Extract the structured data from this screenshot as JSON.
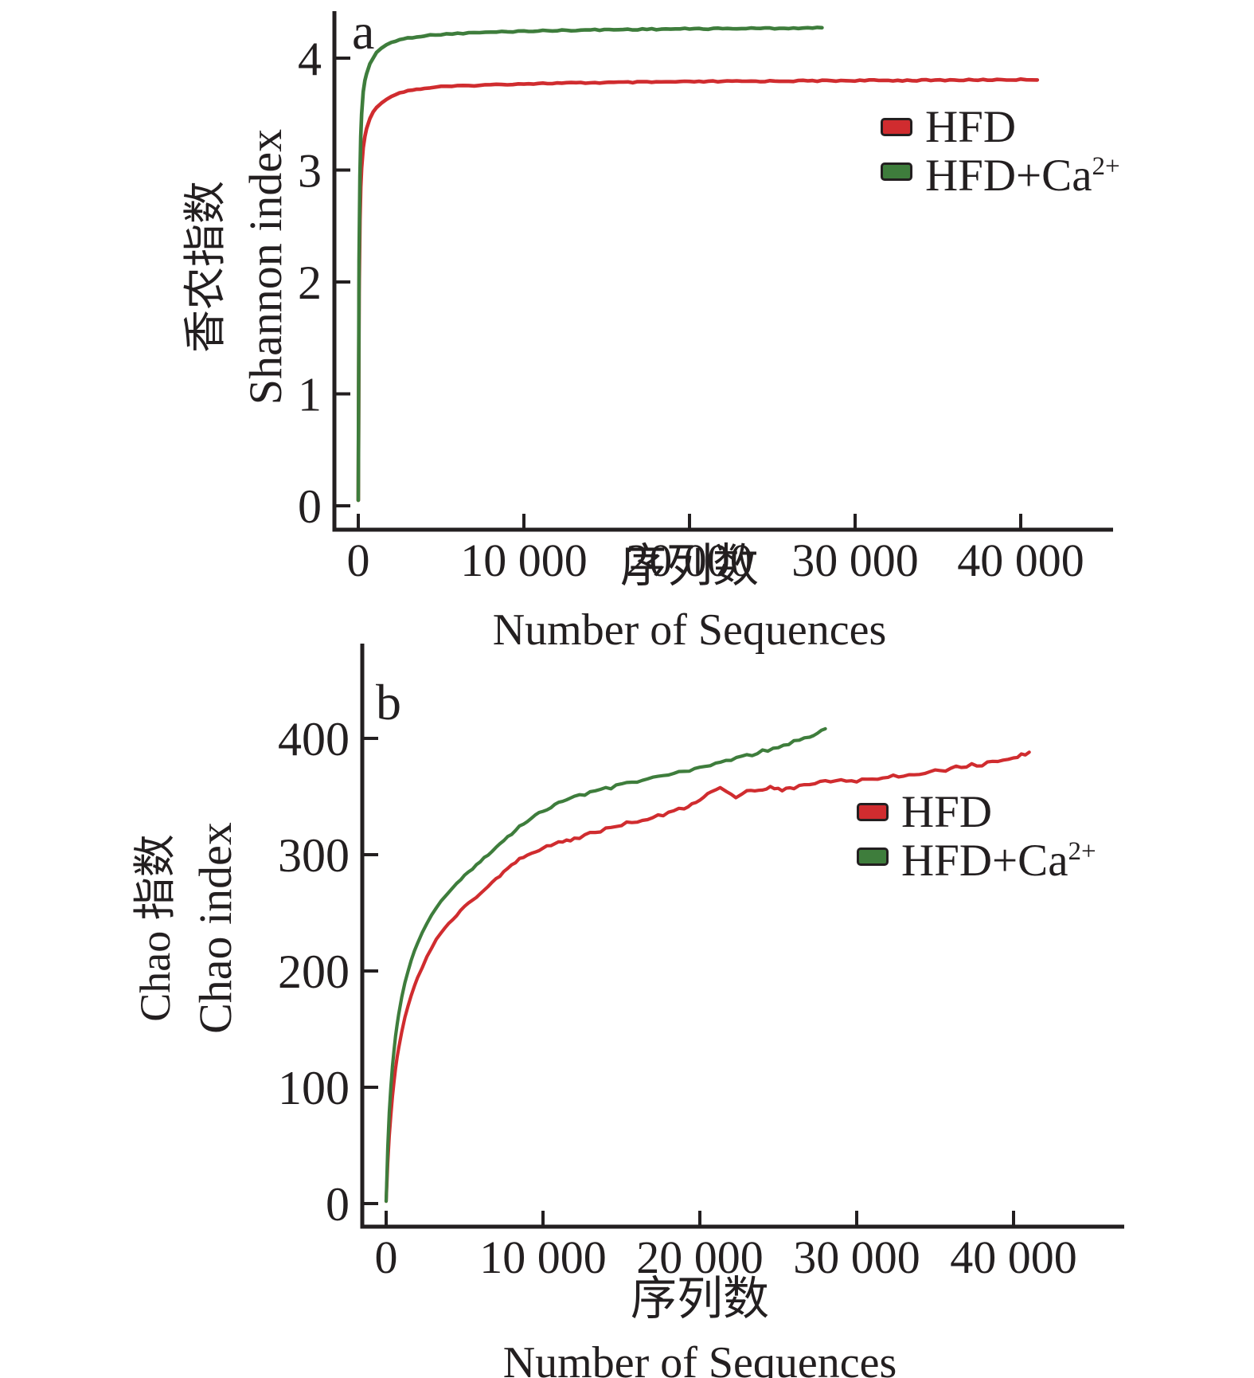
{
  "figure": {
    "background": "#ffffff",
    "ink_color": "#231f20"
  },
  "chart_data": [
    {
      "id": "panel-a",
      "type": "line",
      "panel_letter": "a",
      "xlabel_zh": "序列数",
      "xlabel_en": "Number of Sequences",
      "ylabel_zh": "香农指数",
      "ylabel_en": "Shannon index",
      "xlim": [
        0,
        47000
      ],
      "ylim": [
        0,
        4.45
      ],
      "grid": false,
      "legend_position": "upper right inside",
      "x_ticks": [
        0,
        10000,
        20000,
        30000,
        40000
      ],
      "x_tick_labels": [
        "0",
        "10 000",
        "20 000",
        "30 000",
        "40 000"
      ],
      "y_ticks": [
        0,
        1,
        2,
        3,
        4
      ],
      "y_tick_labels": [
        "0",
        "1",
        "2",
        "3",
        "4"
      ],
      "series": [
        {
          "name": "HFD",
          "legend_base": "HFD",
          "legend_sup": "",
          "color": "#d02c2f",
          "points": [
            [
              0,
              0.05
            ],
            [
              50,
              1.9
            ],
            [
              100,
              2.55
            ],
            [
              150,
              2.85
            ],
            [
              200,
              3.02
            ],
            [
              300,
              3.2
            ],
            [
              400,
              3.3
            ],
            [
              500,
              3.37
            ],
            [
              700,
              3.46
            ],
            [
              900,
              3.52
            ],
            [
              1100,
              3.56
            ],
            [
              1400,
              3.6
            ],
            [
              1700,
              3.63
            ],
            [
              2000,
              3.66
            ],
            [
              2500,
              3.69
            ],
            [
              3000,
              3.71
            ],
            [
              3500,
              3.72
            ],
            [
              4000,
              3.73
            ],
            [
              5000,
              3.745
            ],
            [
              6000,
              3.75
            ],
            [
              7000,
              3.757
            ],
            [
              8000,
              3.762
            ],
            [
              9000,
              3.767
            ],
            [
              10000,
              3.771
            ],
            [
              12000,
              3.776
            ],
            [
              14000,
              3.78
            ],
            [
              16000,
              3.783
            ],
            [
              18000,
              3.786
            ],
            [
              20000,
              3.789
            ],
            [
              22000,
              3.792
            ],
            [
              24000,
              3.794
            ],
            [
              26000,
              3.796
            ],
            [
              28000,
              3.798
            ],
            [
              30000,
              3.8
            ],
            [
              32000,
              3.801
            ],
            [
              34000,
              3.802
            ],
            [
              36000,
              3.804
            ],
            [
              38000,
              3.806
            ],
            [
              40000,
              3.808
            ],
            [
              41000,
              3.81
            ]
          ]
        },
        {
          "name": "HFD+Ca2+",
          "legend_base": "HFD+Ca",
          "legend_sup": "2+",
          "color": "#3e7d3c",
          "points": [
            [
              0,
              0.05
            ],
            [
              50,
              2.2
            ],
            [
              100,
              2.95
            ],
            [
              150,
              3.3
            ],
            [
              200,
              3.5
            ],
            [
              300,
              3.7
            ],
            [
              400,
              3.8
            ],
            [
              500,
              3.86
            ],
            [
              700,
              3.95
            ],
            [
              900,
              4.0
            ],
            [
              1100,
              4.05
            ],
            [
              1400,
              4.09
            ],
            [
              1700,
              4.12
            ],
            [
              2000,
              4.14
            ],
            [
              2500,
              4.165
            ],
            [
              3000,
              4.18
            ],
            [
              3500,
              4.19
            ],
            [
              4000,
              4.2
            ],
            [
              5000,
              4.212
            ],
            [
              6000,
              4.22
            ],
            [
              7000,
              4.227
            ],
            [
              8000,
              4.232
            ],
            [
              9000,
              4.237
            ],
            [
              10000,
              4.241
            ],
            [
              12000,
              4.247
            ],
            [
              14000,
              4.252
            ],
            [
              16000,
              4.256
            ],
            [
              18000,
              4.259
            ],
            [
              20000,
              4.262
            ],
            [
              22000,
              4.264
            ],
            [
              24000,
              4.266
            ],
            [
              26000,
              4.268
            ],
            [
              28000,
              4.27
            ]
          ]
        }
      ]
    },
    {
      "id": "panel-b",
      "type": "line",
      "panel_letter": "b",
      "xlabel_zh": "序列数",
      "xlabel_en": "Number of Sequences",
      "ylabel_zh": "Chao 指数",
      "ylabel_en": "Chao index",
      "xlim": [
        0,
        47000
      ],
      "ylim": [
        0,
        430
      ],
      "grid": false,
      "legend_position": "right inside",
      "x_ticks": [
        0,
        10000,
        20000,
        30000,
        40000
      ],
      "x_tick_labels": [
        "0",
        "10 000",
        "20 000",
        "30 000",
        "40 000"
      ],
      "y_ticks": [
        0,
        100,
        200,
        300,
        400
      ],
      "y_tick_labels": [
        "0",
        "100",
        "200",
        "300",
        "400"
      ],
      "series": [
        {
          "name": "HFD",
          "legend_base": "HFD",
          "legend_sup": "",
          "color": "#d02c2f",
          "points": [
            [
              0,
              2
            ],
            [
              100,
              35
            ],
            [
              200,
              58
            ],
            [
              300,
              76
            ],
            [
              400,
              92
            ],
            [
              500,
              105
            ],
            [
              600,
              116
            ],
            [
              700,
              126
            ],
            [
              800,
              134
            ],
            [
              1000,
              148
            ],
            [
              1200,
              160
            ],
            [
              1400,
              170
            ],
            [
              1600,
              179
            ],
            [
              1800,
              187
            ],
            [
              2000,
              194
            ],
            [
              2300,
              203
            ],
            [
              2600,
              212
            ],
            [
              2900,
              220
            ],
            [
              3200,
              227
            ],
            [
              3500,
              233
            ],
            [
              4000,
              241
            ],
            [
              4500,
              248
            ],
            [
              5000,
              255
            ],
            [
              5500,
              261
            ],
            [
              6000,
              267
            ],
            [
              6500,
              273
            ],
            [
              7000,
              279
            ],
            [
              7500,
              285
            ],
            [
              8000,
              291
            ],
            [
              8500,
              296
            ],
            [
              9000,
              300
            ],
            [
              9500,
              303
            ],
            [
              10000,
              306
            ],
            [
              10500,
              308
            ],
            [
              11000,
              310
            ],
            [
              11500,
              312
            ],
            [
              12000,
              314
            ],
            [
              13000,
              318
            ],
            [
              14000,
              322
            ],
            [
              15000,
              326
            ],
            [
              16000,
              329
            ],
            [
              17000,
              332
            ],
            [
              18000,
              336
            ],
            [
              19000,
              340
            ],
            [
              19500,
              343
            ],
            [
              20000,
              347
            ],
            [
              20500,
              352
            ],
            [
              21000,
              356
            ],
            [
              21300,
              358
            ],
            [
              21700,
              355
            ],
            [
              22000,
              352
            ],
            [
              22300,
              350
            ],
            [
              22700,
              352
            ],
            [
              23000,
              354
            ],
            [
              23500,
              356
            ],
            [
              24000,
              357
            ],
            [
              24500,
              358
            ],
            [
              25000,
              357
            ],
            [
              25500,
              356
            ],
            [
              26000,
              358
            ],
            [
              27000,
              360
            ],
            [
              28000,
              362
            ],
            [
              29000,
              363
            ],
            [
              30000,
              364
            ],
            [
              31000,
              366
            ],
            [
              32000,
              367
            ],
            [
              33000,
              369
            ],
            [
              34000,
              370
            ],
            [
              35000,
              372
            ],
            [
              36000,
              374
            ],
            [
              37000,
              376
            ],
            [
              38000,
              378
            ],
            [
              39000,
              381
            ],
            [
              40000,
              384
            ],
            [
              40500,
              386
            ],
            [
              41000,
              388
            ]
          ]
        },
        {
          "name": "HFD+Ca2+",
          "legend_base": "HFD+Ca",
          "legend_sup": "2+",
          "color": "#3e7d3c",
          "points": [
            [
              0,
              2
            ],
            [
              100,
              48
            ],
            [
              200,
              78
            ],
            [
              300,
              100
            ],
            [
              400,
              118
            ],
            [
              500,
              132
            ],
            [
              600,
              144
            ],
            [
              700,
              154
            ],
            [
              800,
              163
            ],
            [
              1000,
              178
            ],
            [
              1200,
              190
            ],
            [
              1400,
              200
            ],
            [
              1600,
              209
            ],
            [
              1800,
              217
            ],
            [
              2000,
              224
            ],
            [
              2300,
              233
            ],
            [
              2600,
              241
            ],
            [
              2900,
              248
            ],
            [
              3200,
              254
            ],
            [
              3500,
              260
            ],
            [
              4000,
              268
            ],
            [
              4500,
              275
            ],
            [
              5000,
              282
            ],
            [
              5500,
              288
            ],
            [
              6000,
              294
            ],
            [
              6500,
              300
            ],
            [
              7000,
              306
            ],
            [
              7500,
              312
            ],
            [
              8000,
              318
            ],
            [
              8500,
              324
            ],
            [
              9000,
              329
            ],
            [
              9500,
              334
            ],
            [
              10000,
              338
            ],
            [
              10500,
              341
            ],
            [
              11000,
              344
            ],
            [
              11500,
              347
            ],
            [
              12000,
              349
            ],
            [
              13000,
              353
            ],
            [
              14000,
              357
            ],
            [
              15000,
              360
            ],
            [
              16000,
              363
            ],
            [
              17000,
              366
            ],
            [
              18000,
              369
            ],
            [
              19000,
              372
            ],
            [
              20000,
              375
            ],
            [
              21000,
              378
            ],
            [
              22000,
              381
            ],
            [
              23000,
              385
            ],
            [
              24000,
              389
            ],
            [
              25000,
              393
            ],
            [
              26000,
              397
            ],
            [
              27000,
              402
            ],
            [
              27500,
              405
            ],
            [
              28000,
              408
            ]
          ]
        }
      ]
    }
  ]
}
